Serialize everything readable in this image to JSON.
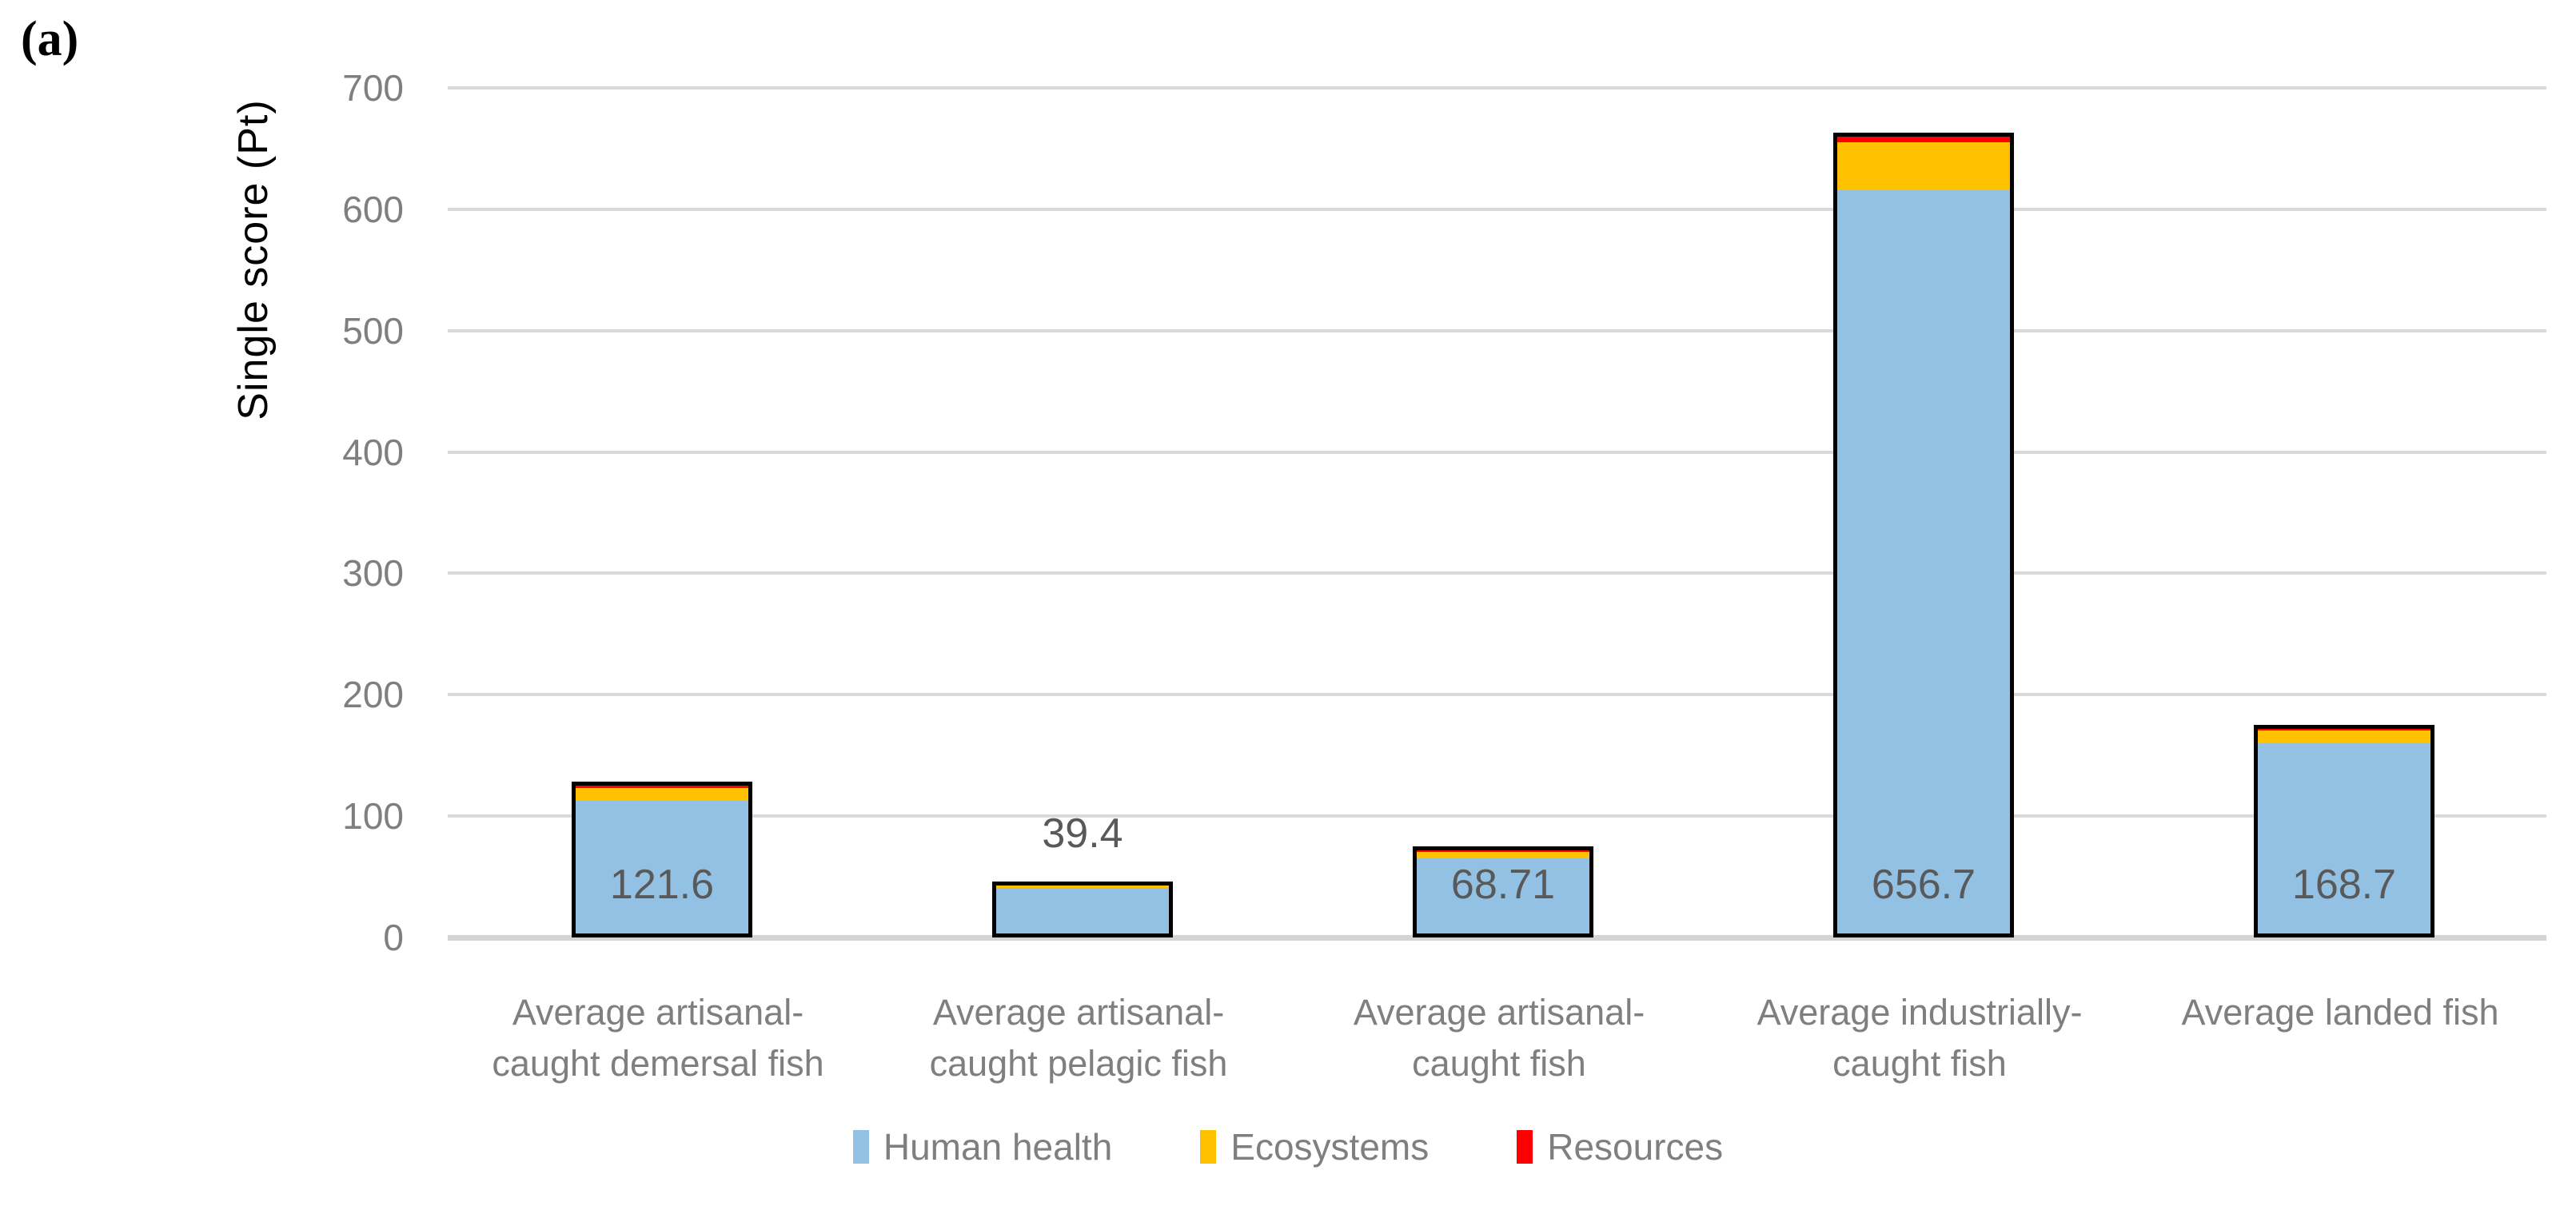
{
  "panel_label": "(a)",
  "chart_data": {
    "type": "bar",
    "stacked": true,
    "title": "",
    "xlabel": "",
    "ylabel": "Single score (Pt)",
    "ylim": [
      0,
      700
    ],
    "yticks": [
      700,
      600,
      500,
      400,
      300,
      200,
      100,
      0
    ],
    "grid": true,
    "legend_position": "bottom",
    "categories": [
      [
        "Average artisanal-",
        "caught demersal fish"
      ],
      [
        "Average artisanal-",
        "caught pelagic fish"
      ],
      [
        "Average artisanal-",
        "caught fish"
      ],
      [
        "Average industrially-",
        "caught fish"
      ],
      [
        "Average landed fish"
      ]
    ],
    "series": [
      {
        "name": "Human health",
        "color": "#92C1E4",
        "values": [
          109.0,
          37.3,
          62.21,
          612.5,
          157.0
        ]
      },
      {
        "name": "Ecosystems",
        "color": "#FFC000",
        "values": [
          11.0,
          1.9,
          5.2,
          39.5,
          10.5
        ]
      },
      {
        "name": "Resources",
        "color": "#FF0000",
        "values": [
          1.6,
          0.2,
          1.3,
          4.7,
          1.2
        ]
      }
    ],
    "totals": [
      121.6,
      39.4,
      68.71,
      656.7,
      168.7
    ],
    "total_labels": [
      "121.6",
      "39.4",
      "68.71",
      "656.7",
      "168.7"
    ],
    "total_label_placement": [
      "inside",
      "above",
      "inside",
      "inside",
      "inside"
    ],
    "colors": {
      "bar_border": "#000000",
      "gridline": "#DADADA",
      "axis_line": "#D4D4D4",
      "tick_text": "#7F7F7F",
      "category_text": "#7F7F7F",
      "legend_text": "#7F7F7F",
      "data_label_text": "#595959",
      "axis_title_text": "#000000"
    }
  }
}
